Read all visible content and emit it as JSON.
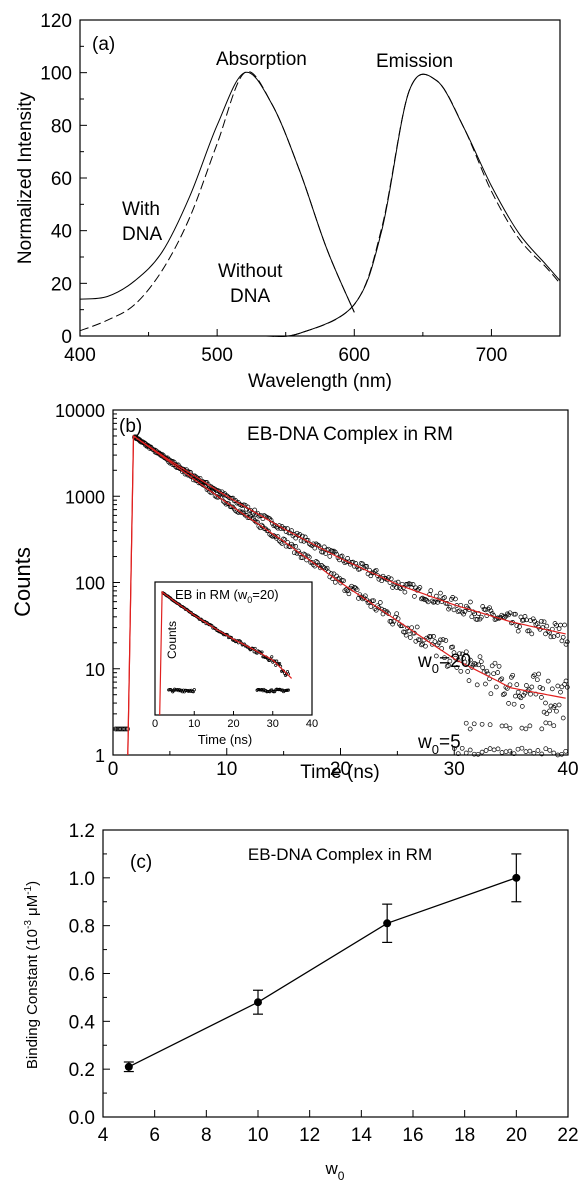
{
  "figure": {
    "panels": [
      {
        "id": "a",
        "panel_label": "(a)",
        "type": "line",
        "xlabel": "Wavelength (nm)",
        "ylabel": "Normalized Intensity",
        "xlim": [
          400,
          750
        ],
        "ylim": [
          0,
          120
        ],
        "xticks": [
          400,
          500,
          600,
          700
        ],
        "yticks": [
          0,
          20,
          40,
          60,
          80,
          100,
          120
        ],
        "annotations": [
          "Absorption",
          "Emission",
          "With",
          "DNA",
          "Without",
          "DNA"
        ],
        "series": [
          {
            "name": "With DNA",
            "style": "solid",
            "x": [
              400,
              420,
              440,
              460,
              480,
              500,
              520,
              540,
              560,
              580,
              600,
              620,
              640,
              660,
              680,
              700,
              720,
              740,
              750
            ],
            "y": [
              14,
              15,
              21,
              32,
              53,
              80,
              100,
              88,
              63,
              33,
              9,
              40,
              93,
              97,
              79,
              57,
              39,
              27,
              21
            ]
          },
          {
            "name": "Without DNA",
            "style": "dashed",
            "x": [
              400,
              420,
              440,
              460,
              480,
              500,
              520,
              540,
              560,
              580,
              600,
              620,
              640,
              660,
              680,
              700,
              720,
              740,
              750
            ],
            "y": [
              2,
              6,
              12,
              25,
              45,
              73,
              100,
              88,
              63,
              33,
              9,
              41,
              93,
              97,
              79,
              55,
              37,
              26,
              20
            ]
          }
        ]
      },
      {
        "id": "b",
        "panel_label": "(b)",
        "type": "scatter",
        "title": "EB-DNA Complex in RM",
        "xlabel": "Time (ns)",
        "ylabel": "Counts",
        "xlim": [
          0,
          40
        ],
        "ylim": [
          1,
          10000
        ],
        "yscale": "log",
        "xticks": [
          0,
          10,
          20,
          30,
          40
        ],
        "yticks": [
          1,
          10,
          100,
          1000,
          10000
        ],
        "series": [
          {
            "name": "w0=20",
            "label_main": "w",
            "label_sub": "0",
            "label_rest": "=20",
            "fit": {
              "t": [
                1.8,
                5,
                10,
                15,
                20,
                25,
                30,
                35,
                40
              ],
              "counts": [
                5000,
                2600,
                1000,
                420,
                190,
                95,
                55,
                35,
                25
              ]
            }
          },
          {
            "name": "w0=5",
            "label_main": "w",
            "label_sub": "0",
            "label_rest": "=5",
            "fit": {
              "t": [
                1.8,
                5,
                10,
                15,
                20,
                25,
                30,
                35,
                40
              ],
              "counts": [
                5000,
                2500,
                840,
                300,
                100,
                36,
                13,
                6,
                4.5
              ]
            }
          }
        ],
        "inset": {
          "title_main": "EB in RM (w",
          "title_sub": "0",
          "title_rest": "=20)",
          "xlabel": "Time (ns)",
          "ylabel": "Counts",
          "xlim": [
            0,
            40
          ],
          "xticks": [
            0,
            10,
            20,
            30,
            40
          ]
        }
      },
      {
        "id": "c",
        "panel_label": "(c)",
        "type": "line",
        "title": "EB-DNA Complex in RM",
        "xlabel_main": "w",
        "xlabel_sub": "0",
        "ylabel_main": "Binding Constant (10",
        "ylabel_sup1": "-3",
        "ylabel_mid": " μM",
        "ylabel_sup2": "-1",
        "ylabel_end": ")",
        "xlim": [
          4,
          22
        ],
        "ylim": [
          0.0,
          1.2
        ],
        "xticks": [
          4,
          6,
          8,
          10,
          12,
          14,
          16,
          18,
          20,
          22
        ],
        "yticks": [
          "0.0",
          "0.2",
          "0.4",
          "0.6",
          "0.8",
          "1.0",
          "1.2"
        ],
        "x": [
          5,
          10,
          15,
          20
        ],
        "y": [
          0.21,
          0.48,
          0.81,
          1.0
        ],
        "yerr": [
          0.02,
          0.05,
          0.08,
          0.1
        ]
      }
    ]
  },
  "chart_data": [
    {
      "type": "line",
      "title": "",
      "xlabel": "Wavelength (nm)",
      "ylabel": "Normalized Intensity",
      "xlim": [
        400,
        750
      ],
      "ylim": [
        0,
        120
      ],
      "series": [
        {
          "name": "With DNA",
          "x": [
            400,
            420,
            440,
            460,
            480,
            500,
            520,
            540,
            560,
            580,
            600,
            620,
            640,
            660,
            680,
            700,
            720,
            740,
            750
          ],
          "y": [
            14,
            15,
            21,
            32,
            53,
            80,
            100,
            88,
            63,
            33,
            9,
            40,
            93,
            97,
            79,
            57,
            39,
            27,
            21
          ]
        },
        {
          "name": "Without DNA",
          "x": [
            400,
            420,
            440,
            460,
            480,
            500,
            520,
            540,
            560,
            580,
            600,
            620,
            640,
            660,
            680,
            700,
            720,
            740,
            750
          ],
          "y": [
            2,
            6,
            12,
            25,
            45,
            73,
            100,
            88,
            63,
            33,
            9,
            41,
            93,
            97,
            79,
            55,
            37,
            26,
            20
          ]
        }
      ]
    },
    {
      "type": "scatter",
      "title": "EB-DNA Complex in RM",
      "xlabel": "Time (ns)",
      "ylabel": "Counts",
      "xlim": [
        0,
        40
      ],
      "ylim": [
        1,
        10000
      ],
      "yscale": "log",
      "series": [
        {
          "name": "w0=20",
          "x": [
            1.8,
            5,
            10,
            15,
            20,
            25,
            30,
            35,
            40
          ],
          "y": [
            5000,
            2600,
            1000,
            420,
            190,
            95,
            55,
            35,
            25
          ]
        },
        {
          "name": "w0=5",
          "x": [
            1.8,
            5,
            10,
            15,
            20,
            25,
            30,
            35,
            40
          ],
          "y": [
            5000,
            2500,
            840,
            300,
            100,
            36,
            13,
            6,
            4.5
          ]
        }
      ]
    },
    {
      "type": "line",
      "title": "EB-DNA Complex in RM",
      "xlabel": "w0",
      "ylabel": "Binding Constant (10-3 μM-1)",
      "xlim": [
        4,
        22
      ],
      "ylim": [
        0.0,
        1.2
      ],
      "x": [
        5,
        10,
        15,
        20
      ],
      "y": [
        0.21,
        0.48,
        0.81,
        1.0
      ],
      "yerr": [
        0.02,
        0.05,
        0.08,
        0.1
      ]
    }
  ]
}
